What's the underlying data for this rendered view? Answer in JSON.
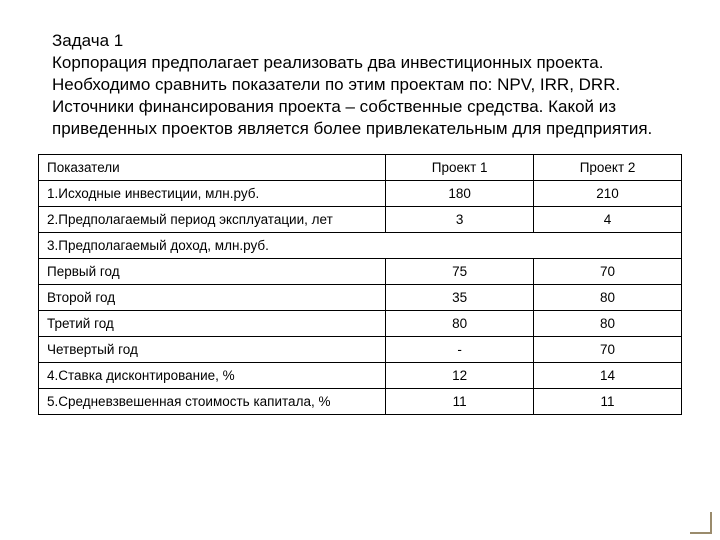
{
  "task": {
    "title": "Задача 1",
    "body": "Корпорация предполагает реализовать два инвестиционных проекта. Необходимо сравнить показатели по этим проектам по: NPV, IRR, DRR. Источники финансирования проекта – собственные средства. Какой из приведенных проектов является более привлекательным для предприятия."
  },
  "table": {
    "columns": [
      "Показатели",
      "Проект 1",
      "Проект 2"
    ],
    "rows": [
      {
        "label": "1.Исходные инвестиции, млн.руб.",
        "p1": "180",
        "p2": "210"
      },
      {
        "label": "2.Предполагаемый период эксплуатации, лет",
        "p1": "3",
        "p2": "4"
      }
    ],
    "section_label": "3.Предполагаемый доход, млн.руб.",
    "income_rows": [
      {
        "label": "Первый год",
        "p1": "75",
        "p2": "70"
      },
      {
        "label": "Второй год",
        "p1": "35",
        "p2": "80"
      },
      {
        "label": "Третий год",
        "p1": "80",
        "p2": "80"
      },
      {
        "label": "Четвертый год",
        "p1": "-",
        "p2": "70"
      }
    ],
    "tail_rows": [
      {
        "label": "4.Ставка дисконтирование, %",
        "p1": "12",
        "p2": "14"
      },
      {
        "label": "5.Средневзвешенная стоимость капитала, %",
        "p1": "11",
        "p2": "11"
      }
    ],
    "border_color": "#000000",
    "background_color": "#ffffff",
    "font_size": 13.5
  }
}
